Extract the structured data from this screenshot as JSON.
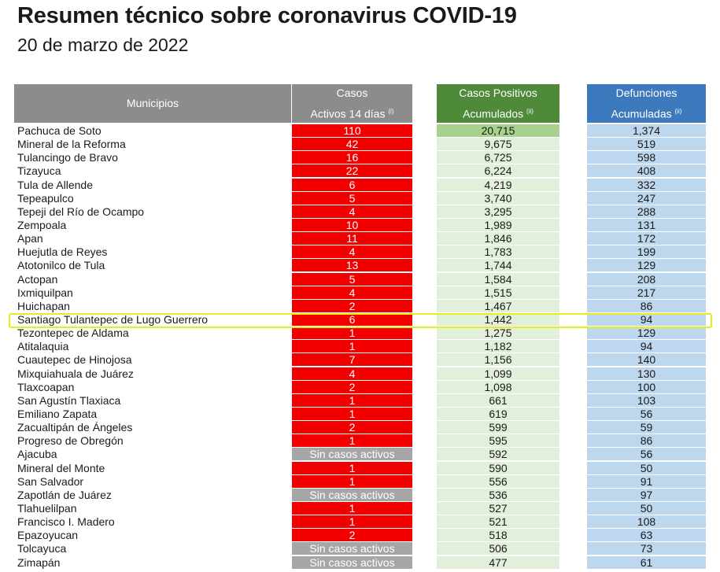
{
  "title": "Resumen técnico sobre coronavirus COVID-19",
  "date": "20 de marzo de 2022",
  "headers": {
    "municipios": "Municipios",
    "activos_line1": "Casos",
    "activos_line2": "Activos 14 días",
    "activos_note": "(i)",
    "positivos_line1": "Casos Positivos",
    "positivos_line2": "Acumulados",
    "positivos_note": "(ii)",
    "defunciones_line1": "Defunciones",
    "defunciones_line2": "Acumuladas",
    "defunciones_note": "(ii)"
  },
  "colors": {
    "active_cases": "#f20000",
    "no_active": "#a6a6a6",
    "positive_header": "#4f8a3b",
    "deaths_header": "#3d7abd",
    "highlight": "#e6ee1e"
  },
  "highlighted_row": "Santiago Tulantepec de Lugo Guerrero",
  "rows": [
    {
      "municipio": "Pachuca de Soto",
      "activos": "110",
      "positivos": "20,715",
      "defunciones": "1,374"
    },
    {
      "municipio": "Mineral de la Reforma",
      "activos": "42",
      "positivos": "9,675",
      "defunciones": "519"
    },
    {
      "municipio": "Tulancingo de Bravo",
      "activos": "16",
      "positivos": "6,725",
      "defunciones": "598"
    },
    {
      "municipio": "Tizayuca",
      "activos": "22",
      "positivos": "6,224",
      "defunciones": "408"
    },
    {
      "municipio": "Tula de Allende",
      "activos": "6",
      "positivos": "4,219",
      "defunciones": "332"
    },
    {
      "municipio": "Tepeapulco",
      "activos": "5",
      "positivos": "3,740",
      "defunciones": "247"
    },
    {
      "municipio": "Tepeji del Río de Ocampo",
      "activos": "4",
      "positivos": "3,295",
      "defunciones": "288"
    },
    {
      "municipio": "Zempoala",
      "activos": "10",
      "positivos": "1,989",
      "defunciones": "131"
    },
    {
      "municipio": "Apan",
      "activos": "11",
      "positivos": "1,846",
      "defunciones": "172"
    },
    {
      "municipio": "Huejutla de Reyes",
      "activos": "4",
      "positivos": "1,783",
      "defunciones": "199"
    },
    {
      "municipio": "Atotonilco de Tula",
      "activos": "13",
      "positivos": "1,744",
      "defunciones": "129"
    },
    {
      "municipio": "Actopan",
      "activos": "5",
      "positivos": "1,584",
      "defunciones": "208"
    },
    {
      "municipio": "Ixmiquilpan",
      "activos": "4",
      "positivos": "1,515",
      "defunciones": "217"
    },
    {
      "municipio": "Huichapan",
      "activos": "2",
      "positivos": "1,467",
      "defunciones": "86"
    },
    {
      "municipio": "Santiago Tulantepec de Lugo Guerrero",
      "activos": "6",
      "positivos": "1,442",
      "defunciones": "94"
    },
    {
      "municipio": "Tezontepec de Aldama",
      "activos": "1",
      "positivos": "1,275",
      "defunciones": "129"
    },
    {
      "municipio": "Atitalaquia",
      "activos": "1",
      "positivos": "1,182",
      "defunciones": "94"
    },
    {
      "municipio": "Cuautepec de Hinojosa",
      "activos": "7",
      "positivos": "1,156",
      "defunciones": "140"
    },
    {
      "municipio": "Mixquiahuala de Juárez",
      "activos": "4",
      "positivos": "1,099",
      "defunciones": "130"
    },
    {
      "municipio": "Tlaxcoapan",
      "activos": "2",
      "positivos": "1,098",
      "defunciones": "100"
    },
    {
      "municipio": "San Agustín Tlaxiaca",
      "activos": "1",
      "positivos": "661",
      "defunciones": "103"
    },
    {
      "municipio": "Emiliano Zapata",
      "activos": "1",
      "positivos": "619",
      "defunciones": "56"
    },
    {
      "municipio": "Zacualtipán de Ángeles",
      "activos": "2",
      "positivos": "599",
      "defunciones": "59"
    },
    {
      "municipio": "Progreso de Obregón",
      "activos": "1",
      "positivos": "595",
      "defunciones": "86"
    },
    {
      "municipio": "Ajacuba",
      "activos": "Sin casos activos",
      "positivos": "592",
      "defunciones": "56"
    },
    {
      "municipio": "Mineral del Monte",
      "activos": "1",
      "positivos": "590",
      "defunciones": "50"
    },
    {
      "municipio": "San Salvador",
      "activos": "1",
      "positivos": "556",
      "defunciones": "91"
    },
    {
      "municipio": "Zapotlán de Juárez",
      "activos": "Sin casos activos",
      "positivos": "536",
      "defunciones": "97"
    },
    {
      "municipio": "Tlahuelilpan",
      "activos": "1",
      "positivos": "527",
      "defunciones": "50"
    },
    {
      "municipio": "Francisco I. Madero",
      "activos": "1",
      "positivos": "521",
      "defunciones": "108"
    },
    {
      "municipio": "Epazoyucan",
      "activos": "2",
      "positivos": "518",
      "defunciones": "63"
    },
    {
      "municipio": "Tolcayuca",
      "activos": "Sin casos activos",
      "positivos": "506",
      "defunciones": "73"
    },
    {
      "municipio": "Zimapán",
      "activos": "Sin casos activos",
      "positivos": "477",
      "defunciones": "61"
    }
  ]
}
